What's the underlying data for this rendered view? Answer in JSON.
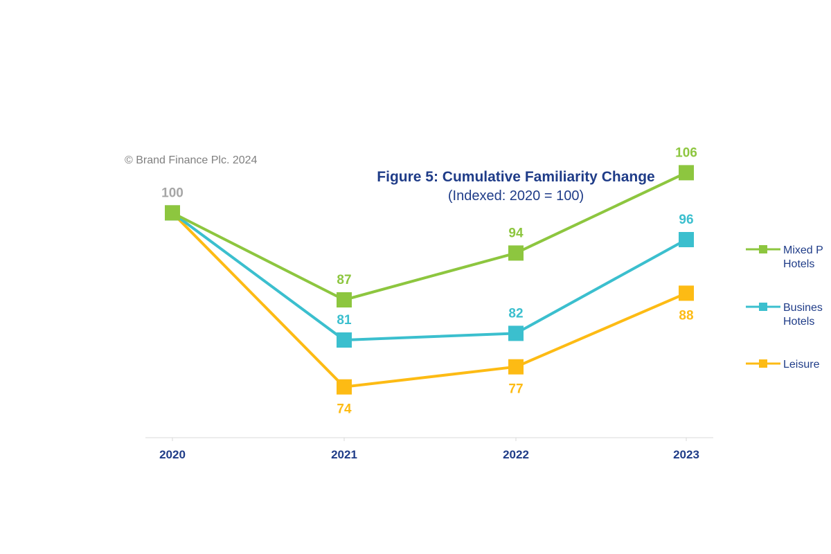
{
  "copyright": "© Brand Finance Plc. 2024",
  "chart_data": {
    "type": "line",
    "title": "Figure 5: Cumulative Familiarity Change",
    "subtitle": "(Indexed: 2020 = 100)",
    "categories": [
      "2020",
      "2021",
      "2022",
      "2023"
    ],
    "ylim": [
      65,
      110
    ],
    "grid": false,
    "legend_position": "right",
    "start_label": "100",
    "start_label_color": "#a6a6a6",
    "series": [
      {
        "name_lines": [
          "Mixed P",
          "Hotels"
        ],
        "color": "#8dc63f",
        "values": [
          100,
          87,
          94,
          106
        ],
        "labels": [
          "100",
          "87",
          "94",
          "106"
        ],
        "label_pos": [
          "none",
          "above",
          "above",
          "above"
        ]
      },
      {
        "name_lines": [
          "Busines",
          "Hotels"
        ],
        "color": "#3bbfce",
        "values": [
          100,
          81,
          82,
          96
        ],
        "labels": [
          "100",
          "81",
          "82",
          "96"
        ],
        "label_pos": [
          "none",
          "above",
          "above",
          "above"
        ]
      },
      {
        "name_lines": [
          "Leisure"
        ],
        "color": "#fdbb14",
        "values": [
          100,
          74,
          77,
          88
        ],
        "labels": [
          "100",
          "74",
          "77",
          "88"
        ],
        "label_pos": [
          "none",
          "below",
          "below",
          "below"
        ]
      }
    ]
  }
}
